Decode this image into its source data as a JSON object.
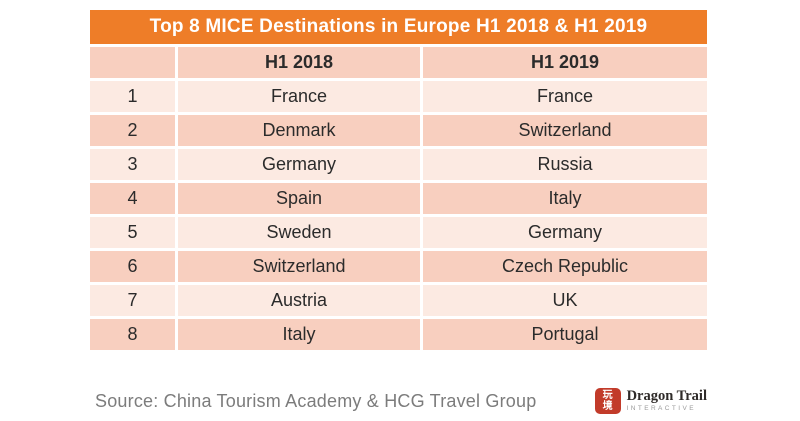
{
  "chart_data": {
    "type": "table",
    "title": "Top 8 MICE Destinations in Europe H1 2018 & H1 2019",
    "columns": [
      "",
      "H1 2018",
      "H1 2019"
    ],
    "rows": [
      [
        "1",
        "France",
        "France"
      ],
      [
        "2",
        "Denmark",
        "Switzerland"
      ],
      [
        "3",
        "Germany",
        "Russia"
      ],
      [
        "4",
        "Spain",
        "Italy"
      ],
      [
        "5",
        "Sweden",
        "Germany"
      ],
      [
        "6",
        "Switzerland",
        "Czech Republic"
      ],
      [
        "7",
        "Austria",
        "UK"
      ],
      [
        "8",
        "Italy",
        "Portugal"
      ]
    ],
    "source": "Source: China Tourism Academy & HCG Travel Group",
    "layout": "ranked comparison table, rank column + two period columns, alternating row shading"
  },
  "footer": {
    "source": "Source: China Tourism Academy & HCG Travel Group",
    "logo": {
      "seal_char_top": "玩",
      "seal_char_bottom": "境",
      "name": "Dragon Trail",
      "subtitle": "INTERACTIVE"
    }
  },
  "colors": {
    "title_bar": "#EE7D28",
    "row_dark": "#F8CFBF",
    "row_light": "#FCEAE2",
    "text": "#2B2B2B",
    "source_text": "#7C7C7C",
    "seal_red": "#C23B2A"
  }
}
